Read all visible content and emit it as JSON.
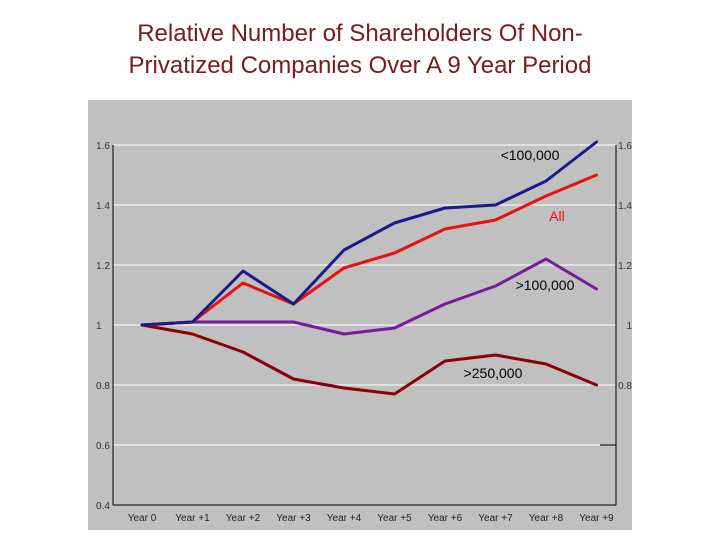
{
  "title_line1": "Relative Number of Shareholders Of Non-",
  "title_line2": "Privatized Companies Over A 9 Year Period",
  "chart_data": {
    "type": "line",
    "title": "Relative Number of Shareholders Of Non-Privatized Companies Over A 9 Year Period",
    "xlabel": "",
    "ylabel": "",
    "ylim": [
      0.4,
      1.6
    ],
    "yticks": [
      0.4,
      0.6,
      0.8,
      1,
      1.2,
      1.4,
      1.6
    ],
    "ytick_labels": [
      "0.4",
      "0.6",
      "0.8",
      "1",
      "1.2",
      "1.4",
      "1.6"
    ],
    "right_tick_labels": [
      "0.8",
      "1",
      "1.2",
      "1.4",
      "1.6"
    ],
    "categories": [
      "Year 0",
      "Year +1",
      "Year +2",
      "Year +3",
      "Year +4",
      "Year +5",
      "Year +6",
      "Year +7",
      "Year +8",
      "Year +9"
    ],
    "grid": true,
    "series": [
      {
        "name": "<100,000",
        "color": "#1a1a8c",
        "values": [
          1.0,
          1.01,
          1.18,
          1.07,
          1.25,
          1.34,
          1.39,
          1.4,
          1.48,
          1.61
        ]
      },
      {
        "name": "All",
        "color": "#e81010",
        "values": [
          1.0,
          1.01,
          1.14,
          1.07,
          1.19,
          1.24,
          1.32,
          1.35,
          1.43,
          1.5
        ]
      },
      {
        "name": ">100,000",
        "color": "#7a1a9a",
        "values": [
          1.0,
          1.01,
          1.01,
          1.01,
          0.97,
          0.99,
          1.07,
          1.13,
          1.22,
          1.12
        ]
      },
      {
        "name": ">250,000",
        "color": "#8b0000",
        "values": [
          1.0,
          0.97,
          0.91,
          0.82,
          0.79,
          0.77,
          0.88,
          0.9,
          0.87,
          0.8
        ]
      }
    ]
  }
}
